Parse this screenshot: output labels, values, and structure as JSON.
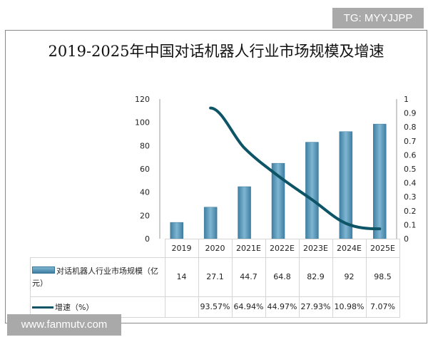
{
  "watermark_top": "TG: MYYJJPP",
  "watermark_bottom": "www.fanmutv.com",
  "chart_data": {
    "type": "bar+line",
    "title": "2019-2025年中国对话机器人行业市场规模及增速",
    "categories": [
      "2019",
      "2020",
      "2021E",
      "2022E",
      "2023E",
      "2024E",
      "2025E"
    ],
    "series": [
      {
        "name": "对话机器人行业市场规模（亿元）",
        "type": "bar",
        "axis": "left",
        "values": [
          14,
          27.1,
          44.7,
          64.8,
          82.9,
          92,
          98.5
        ],
        "labels": [
          "14",
          "27.1",
          "44.7",
          "64.8",
          "82.9",
          "92",
          "98.5"
        ],
        "color": "#4a8db0"
      },
      {
        "name": "增速（%）",
        "type": "line",
        "axis": "right",
        "values": [
          null,
          0.9357,
          0.6494,
          0.4497,
          0.2793,
          0.1098,
          0.0707
        ],
        "labels": [
          "",
          "93.57%",
          "64.94%",
          "44.97%",
          "27.93%",
          "10.98%",
          "7.07%"
        ],
        "color": "#0d5566"
      }
    ],
    "left_axis": {
      "ylim": [
        0,
        120
      ],
      "ticks": [
        "0",
        "20",
        "40",
        "60",
        "80",
        "100",
        "120"
      ]
    },
    "right_axis": {
      "ylim": [
        0,
        1
      ],
      "ticks": [
        "0",
        "0.1",
        "0.2",
        "0.3",
        "0.4",
        "0.5",
        "0.6",
        "0.7",
        "0.8",
        "0.9",
        "1"
      ]
    },
    "legend": "table-bottom"
  }
}
